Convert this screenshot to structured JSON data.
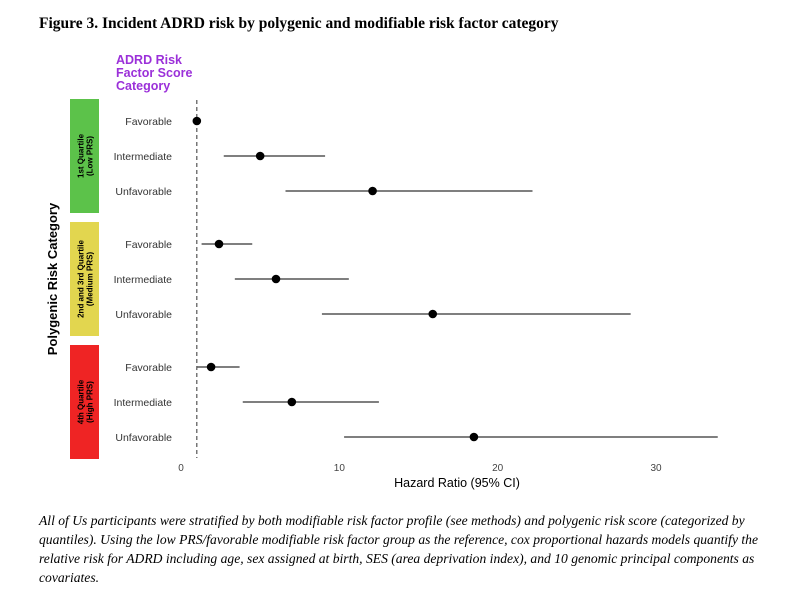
{
  "figure_title": "Figure 3. Incident ADRD risk by polygenic and modifiable risk factor category",
  "caption": {
    "lead": "All of Us",
    "text": " participants were stratified by both modifiable risk factor profile (see methods) and polygenic risk score (categorized by quantiles). Using the low PRS/favorable modifiable risk factor group as the reference, cox proportional hazards models quantify the relative risk for ADRD including age, sex assigned at birth, SES (area deprivation index), and 10 genomic principal components as covariates."
  },
  "colors": {
    "group_low": "#5cc24a",
    "group_medium": "#e2d64f",
    "group_high": "#ef2424",
    "legend_title": "#9b30d9",
    "point": "#000000",
    "ci_line": "#555555"
  },
  "chart_data": {
    "type": "forest",
    "xlabel": "Hazard Ratio (95% CI)",
    "ylabel": "Polygenic Risk Category",
    "row_header": [
      "ADRD Risk",
      "Factor Score",
      "Category"
    ],
    "xlim": [
      0,
      35
    ],
    "xticks": [
      0,
      10,
      20,
      30
    ],
    "reference_line": 1,
    "groups": [
      {
        "label_lines": [
          "1st Quartile",
          "(Low PRS)"
        ],
        "color": "#5cc24a",
        "rows": [
          {
            "label": "Favorable",
            "hr": 1.0,
            "lo": 1.0,
            "hi": 1.0
          },
          {
            "label": "Intermediate",
            "hr": 5.0,
            "lo": 2.7,
            "hi": 9.1
          },
          {
            "label": "Unfavorable",
            "hr": 12.1,
            "lo": 6.6,
            "hi": 22.2
          }
        ]
      },
      {
        "label_lines": [
          "2nd and 3rd Quartile",
          "(Medium PRS)"
        ],
        "color": "#e2d64f",
        "rows": [
          {
            "label": "Favorable",
            "hr": 2.4,
            "lo": 1.3,
            "hi": 4.5
          },
          {
            "label": "Intermediate",
            "hr": 6.0,
            "lo": 3.4,
            "hi": 10.6
          },
          {
            "label": "Unfavorable",
            "hr": 15.9,
            "lo": 8.9,
            "hi": 28.4
          }
        ]
      },
      {
        "label_lines": [
          "4th Quartile",
          "(High PRS)"
        ],
        "color": "#ef2424",
        "rows": [
          {
            "label": "Favorable",
            "hr": 1.9,
            "lo": 1.0,
            "hi": 3.7
          },
          {
            "label": "Intermediate",
            "hr": 7.0,
            "lo": 3.9,
            "hi": 12.5
          },
          {
            "label": "Unfavorable",
            "hr": 18.5,
            "lo": 10.3,
            "hi": 33.9
          }
        ]
      }
    ]
  }
}
